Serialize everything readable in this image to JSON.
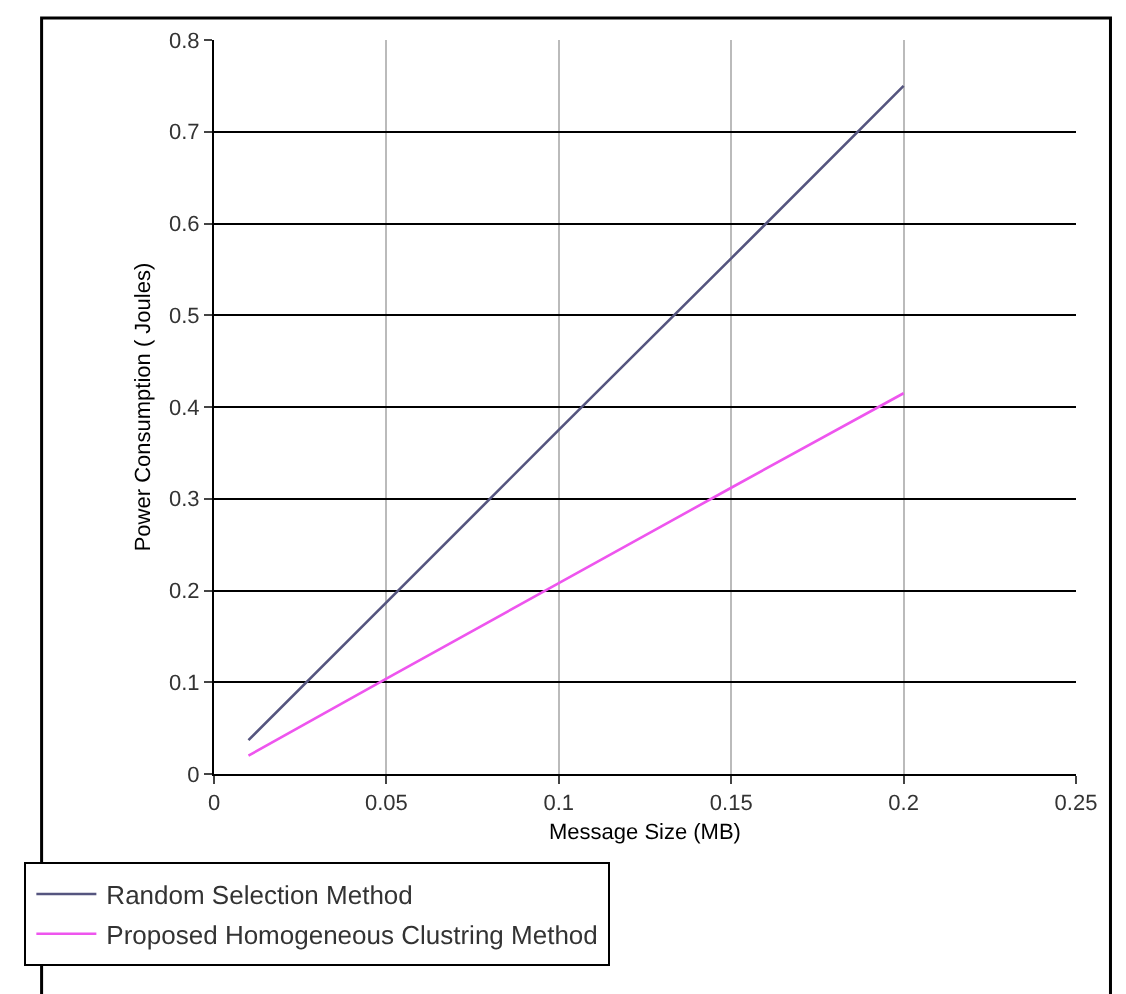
{
  "chart_data": {
    "type": "line",
    "xlabel": "Message Size (MB)",
    "ylabel": "Power Consumption ( Joules)",
    "x": [
      0.01,
      0.05,
      0.1,
      0.15,
      0.2
    ],
    "series": [
      {
        "name": "Random Selection Method",
        "color": "#55557f",
        "values": [
          0.037,
          0.187,
          0.375,
          0.562,
          0.75
        ]
      },
      {
        "name": "Proposed Homogeneous Clustring Method",
        "color": "#ee55ee",
        "values": [
          0.02,
          0.104,
          0.208,
          0.312,
          0.415
        ]
      }
    ],
    "xlim": [
      0,
      0.25
    ],
    "xticks": [
      0,
      0.05,
      0.1,
      0.15,
      0.2,
      {
        "value": 0.25,
        "label": "0.25"
      }
    ],
    "ylim": [
      0,
      0.8
    ],
    "yticks": [
      0,
      0.1,
      0.2,
      0.3,
      0.4,
      0.5,
      0.6,
      0.7,
      0.8
    ],
    "grid": true,
    "legend": "bottom left",
    "marker": "none",
    "line_style": "solid"
  }
}
